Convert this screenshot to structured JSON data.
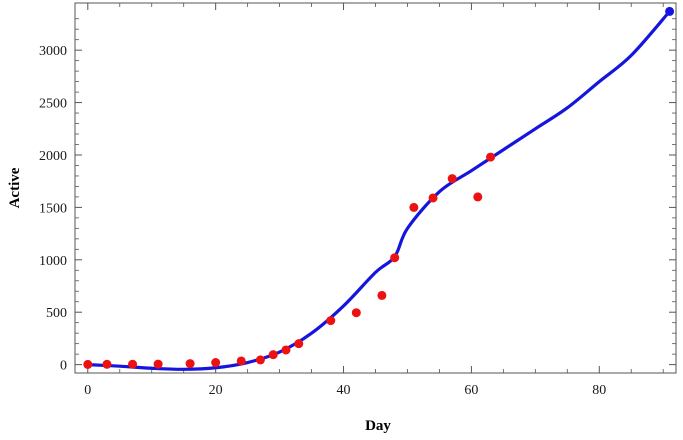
{
  "chart_data": {
    "type": "scatter",
    "xlabel": "Day",
    "ylabel": "Active",
    "xlim": [
      -2,
      92
    ],
    "ylim": [
      -80,
      3450
    ],
    "x_ticks": [
      0,
      20,
      40,
      60,
      80
    ],
    "y_ticks": [
      0,
      500,
      1000,
      1500,
      2000,
      2500,
      3000
    ],
    "grid": false,
    "colors": {
      "points": "#ee1111",
      "curve": "#1515dd",
      "frame": "#555555"
    },
    "series": [
      {
        "type": "scatter",
        "x": [
          0,
          3,
          7,
          11,
          16,
          20,
          24,
          27,
          29,
          31,
          33,
          38,
          42,
          46,
          48,
          51,
          54,
          57,
          61,
          63
        ],
        "y": [
          2,
          3,
          4,
          5,
          10,
          20,
          35,
          45,
          95,
          140,
          200,
          420,
          495,
          660,
          1020,
          1500,
          1590,
          1775,
          1600,
          1980
        ]
      },
      {
        "type": "line",
        "x": [
          0,
          5,
          10,
          15,
          20,
          25,
          30,
          35,
          40,
          45,
          48,
          50,
          55,
          60,
          65,
          70,
          75,
          80,
          85,
          91
        ],
        "y": [
          0,
          -15,
          -35,
          -45,
          -30,
          20,
          120,
          300,
          560,
          880,
          1030,
          1300,
          1650,
          1850,
          2050,
          2250,
          2450,
          2700,
          2950,
          3370
        ]
      },
      {
        "type": "scatter",
        "x": [
          91
        ],
        "y": [
          3370
        ]
      }
    ]
  }
}
